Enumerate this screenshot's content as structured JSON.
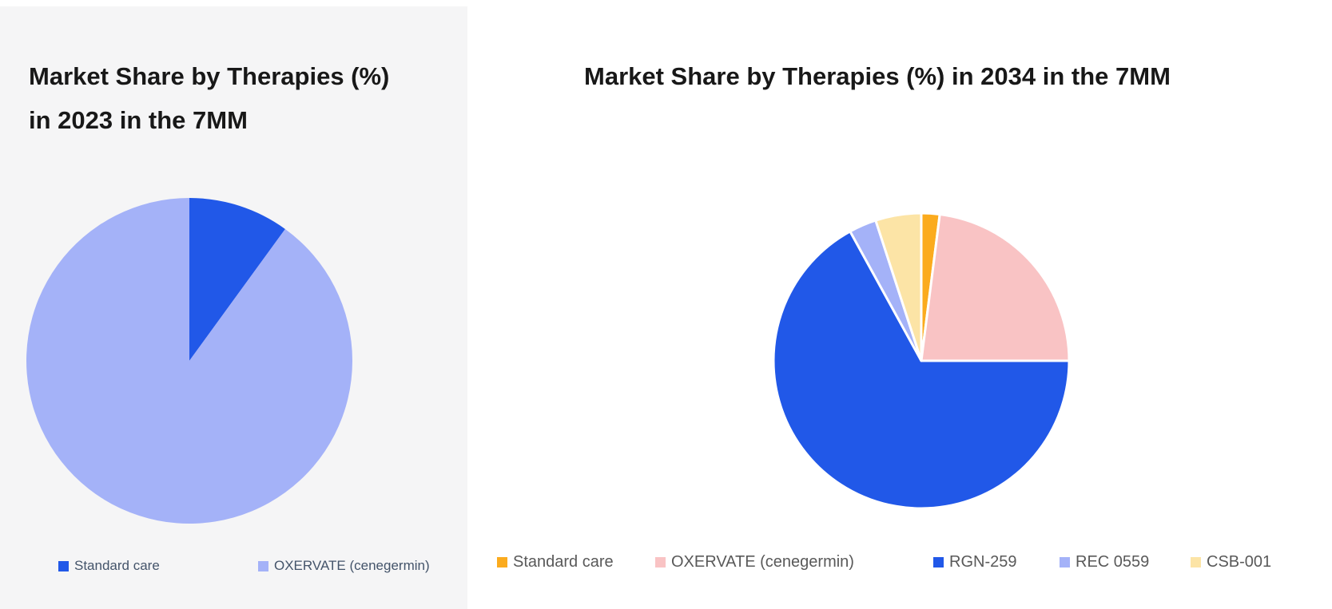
{
  "page": {
    "background": "#ffffff"
  },
  "left_panel": {
    "background": "#f5f5f6",
    "title_line1": "Market Share by Therapies (%)",
    "title_line2": "in 2023 in the 7MM"
  },
  "right_panel": {
    "background": "#ffffff",
    "title": "Market Share by Therapies (%) in 2034 in the 7MM"
  },
  "chart_data": [
    {
      "type": "pie",
      "title": "Market Share by Therapies (%) in 2023 in the 7MM",
      "labels": [
        "Standard care",
        "OXERVATE (cenegermin)"
      ],
      "values": [
        10,
        90
      ],
      "colors": [
        "#2158e8",
        "#a4b2f8"
      ],
      "start_angle_deg": 0,
      "direction": "clockwise",
      "legend_position": "bottom",
      "slice_borders": false,
      "slice_border_color": "#ffffff",
      "legend_text_color": "#44546a"
    },
    {
      "type": "pie",
      "title": "Market Share by Therapies (%) in 2034 in the 7MM",
      "labels": [
        "Standard care",
        "OXERVATE (cenegermin)",
        "RGN-259",
        "REC 0559",
        "CSB-001"
      ],
      "values": [
        2,
        23,
        67,
        3,
        5
      ],
      "colors": [
        "#fbab1e",
        "#f9c3c4",
        "#2158e8",
        "#a4b2f8",
        "#fce4a6"
      ],
      "start_angle_deg": 0,
      "direction": "clockwise",
      "legend_position": "bottom",
      "slice_borders": true,
      "slice_border_color": "#ffffff",
      "legend_text_color": "#595959"
    }
  ]
}
